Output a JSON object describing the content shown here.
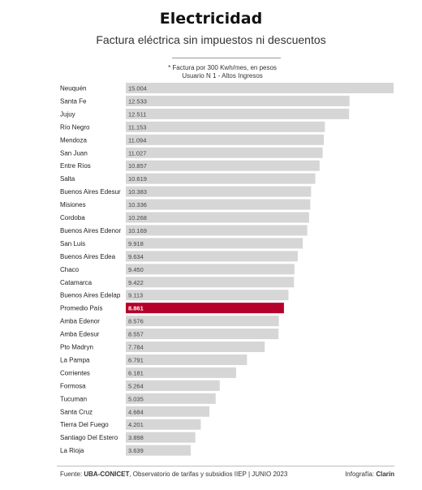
{
  "header": {
    "title": "Electricidad",
    "subtitle": "Factura eléctrica sin impuestos ni descuentos",
    "note_line1": "* Factura por 300 Kwh/mes, en pesos",
    "note_line2": "Usuario N 1 - Altos Ingresos"
  },
  "footer": {
    "source_prefix": "Fuente: ",
    "source_bold": "UBA-CONICET",
    "source_rest": ", Observatorio de tarifas y subsidios IIEP | JUNIO 2023",
    "credit_prefix": "Infografía: ",
    "credit_bold": "Clarín"
  },
  "colors": {
    "bar": "#d6d6d6",
    "highlight": "#b5002b",
    "value_text": "#444444",
    "highlight_text": "#ffffff"
  },
  "chart_data": {
    "type": "bar",
    "orientation": "horizontal",
    "categories": [
      "Neuquén",
      "Santa Fe",
      "Jujuy",
      "Río Negro",
      "Mendoza",
      "San Juan",
      "Entre Ríos",
      "Salta",
      "Buenos Aires Edesur",
      "Misiones",
      "Cordoba",
      "Buenos Aires Edenor",
      "San Luis",
      "Buenos Aires Edea",
      "Chaco",
      "Catamarca",
      "Buenos Aires Edelap",
      "Promedio País",
      "Amba Edenor",
      "Amba Edesur",
      "Pto Madryn",
      "La Pampa",
      "Corrientes",
      "Formosa",
      "Tucuman",
      "Santa Cruz",
      "Tierra Del Fuego",
      "Santiago Del Estero",
      "La Rioja"
    ],
    "values": [
      15004,
      12533,
      12511,
      11153,
      11094,
      11027,
      10857,
      10619,
      10383,
      10336,
      10268,
      10169,
      9918,
      9634,
      9450,
      9422,
      9113,
      8861,
      8576,
      8557,
      7784,
      6791,
      6181,
      5264,
      5035,
      4684,
      4201,
      3898,
      3639
    ],
    "value_labels": [
      "15.004",
      "12.533",
      "12.511",
      "11.153",
      "11.094",
      "11.027",
      "10.857",
      "10.619",
      "10.383",
      "10.336",
      "10.268",
      "10.169",
      "9.918",
      "9.634",
      "9.450",
      "9.422",
      "9.113",
      "8.861",
      "8.576",
      "8.557",
      "7.784",
      "6.791",
      "6.181",
      "5.264",
      "5.035",
      "4.684",
      "4.201",
      "3.898",
      "3.639"
    ],
    "highlight": "Promedio País",
    "xlim": [
      0,
      15004
    ],
    "grid": false,
    "legend": "none"
  }
}
